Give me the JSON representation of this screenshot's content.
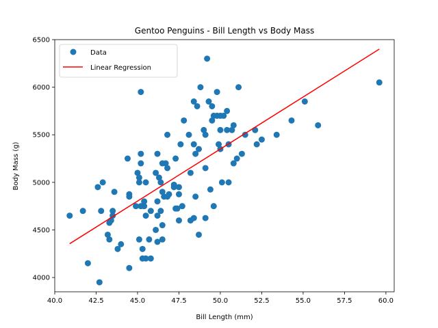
{
  "chart_data": {
    "type": "scatter",
    "title": "Gentoo Penguins - Bill Length vs Body Mass",
    "xlabel": "Bill Length (mm)",
    "ylabel": "Body Mass (g)",
    "xlim": [
      40.0,
      60.5
    ],
    "ylim": [
      3850,
      6500
    ],
    "xticks": [
      40.0,
      42.5,
      45.0,
      47.5,
      50.0,
      52.5,
      55.0,
      57.5,
      60.0
    ],
    "xtick_labels": [
      "40.0",
      "42.5",
      "45.0",
      "47.5",
      "50.0",
      "52.5",
      "55.0",
      "57.5",
      "60.0"
    ],
    "yticks": [
      4000,
      4500,
      5000,
      5500,
      6000,
      6500
    ],
    "ytick_labels": [
      "4000",
      "4500",
      "5000",
      "5500",
      "6000",
      "6500"
    ],
    "grid": false,
    "legend_position": "upper-left",
    "colors": {
      "points": "#1f77b4",
      "regression": "#ff0000"
    },
    "series": [
      {
        "name": "Data",
        "kind": "scatter",
        "points": [
          [
            40.9,
            4650
          ],
          [
            41.7,
            4700
          ],
          [
            42.0,
            4150
          ],
          [
            42.6,
            4950
          ],
          [
            42.7,
            3950
          ],
          [
            42.8,
            4700
          ],
          [
            42.9,
            5000
          ],
          [
            43.2,
            4450
          ],
          [
            43.3,
            4400
          ],
          [
            43.3,
            4575
          ],
          [
            43.4,
            4600
          ],
          [
            43.5,
            4650
          ],
          [
            43.5,
            4700
          ],
          [
            43.6,
            4900
          ],
          [
            43.8,
            4300
          ],
          [
            44.0,
            4350
          ],
          [
            44.4,
            5250
          ],
          [
            44.5,
            4850
          ],
          [
            44.5,
            4875
          ],
          [
            44.5,
            4100
          ],
          [
            44.9,
            4750
          ],
          [
            45.0,
            5100
          ],
          [
            45.1,
            5050
          ],
          [
            45.1,
            5000
          ],
          [
            45.1,
            4400
          ],
          [
            45.2,
            5950
          ],
          [
            45.2,
            5300
          ],
          [
            45.2,
            5200
          ],
          [
            45.2,
            4750
          ],
          [
            45.3,
            4300
          ],
          [
            45.3,
            4200
          ],
          [
            45.4,
            4800
          ],
          [
            45.4,
            4750
          ],
          [
            45.5,
            5000
          ],
          [
            45.5,
            4650
          ],
          [
            45.5,
            4200
          ],
          [
            45.7,
            4400
          ],
          [
            45.8,
            4200
          ],
          [
            45.8,
            4700
          ],
          [
            46.1,
            5100
          ],
          [
            46.1,
            4500
          ],
          [
            46.2,
            5300
          ],
          [
            46.2,
            4800
          ],
          [
            46.2,
            4650
          ],
          [
            46.2,
            4375
          ],
          [
            46.3,
            5050
          ],
          [
            46.4,
            5000
          ],
          [
            46.4,
            4700
          ],
          [
            46.5,
            5200
          ],
          [
            46.5,
            4900
          ],
          [
            46.5,
            4550
          ],
          [
            46.5,
            4400
          ],
          [
            46.6,
            4850
          ],
          [
            46.7,
            5200
          ],
          [
            46.8,
            5500
          ],
          [
            46.8,
            5150
          ],
          [
            46.8,
            4850
          ],
          [
            46.9,
            4875
          ],
          [
            47.2,
            4975
          ],
          [
            47.2,
            4950
          ],
          [
            47.3,
            5250
          ],
          [
            47.3,
            4725
          ],
          [
            47.4,
            4725
          ],
          [
            47.5,
            4950
          ],
          [
            47.5,
            4875
          ],
          [
            47.5,
            4600
          ],
          [
            47.6,
            5400
          ],
          [
            47.7,
            4750
          ],
          [
            47.8,
            5650
          ],
          [
            48.1,
            5500
          ],
          [
            48.2,
            5100
          ],
          [
            48.2,
            4600
          ],
          [
            48.4,
            5850
          ],
          [
            48.4,
            5400
          ],
          [
            48.4,
            4625
          ],
          [
            48.5,
            5300
          ],
          [
            48.5,
            4850
          ],
          [
            48.6,
            5800
          ],
          [
            48.7,
            5350
          ],
          [
            48.7,
            4450
          ],
          [
            48.8,
            6000
          ],
          [
            49.0,
            5550
          ],
          [
            49.1,
            5500
          ],
          [
            49.1,
            5150
          ],
          [
            49.1,
            4625
          ],
          [
            49.2,
            6300
          ],
          [
            49.3,
            5850
          ],
          [
            49.4,
            4925
          ],
          [
            49.5,
            5800
          ],
          [
            49.5,
            5650
          ],
          [
            49.6,
            5700
          ],
          [
            49.6,
            4750
          ],
          [
            49.8,
            5700
          ],
          [
            49.8,
            5950
          ],
          [
            49.9,
            5400
          ],
          [
            50.0,
            5700
          ],
          [
            50.0,
            5550
          ],
          [
            50.0,
            5350
          ],
          [
            50.1,
            5000
          ],
          [
            50.2,
            5700
          ],
          [
            50.4,
            5750
          ],
          [
            50.4,
            5550
          ],
          [
            50.5,
            5400
          ],
          [
            50.5,
            5000
          ],
          [
            50.7,
            5550
          ],
          [
            50.8,
            5600
          ],
          [
            50.8,
            5200
          ],
          [
            51.0,
            5250
          ],
          [
            51.1,
            6000
          ],
          [
            51.3,
            5300
          ],
          [
            51.5,
            5500
          ],
          [
            52.1,
            5550
          ],
          [
            52.2,
            5400
          ],
          [
            52.5,
            5450
          ],
          [
            53.4,
            5500
          ],
          [
            54.3,
            5650
          ],
          [
            55.1,
            5850
          ],
          [
            55.9,
            5600
          ],
          [
            59.6,
            6050
          ]
        ]
      },
      {
        "name": "Linear Regression",
        "kind": "line",
        "x": [
          40.9,
          59.6
        ],
        "y": [
          4355,
          6400
        ]
      }
    ]
  }
}
